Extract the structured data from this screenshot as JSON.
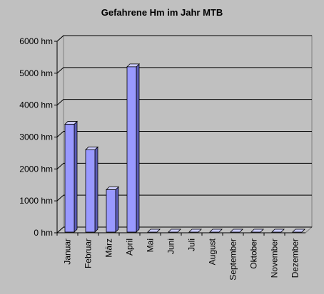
{
  "chart_data": {
    "type": "bar3d",
    "title": "Gefahrene Hm im Jahr MTB",
    "categories": [
      "Januar",
      "Februar",
      "März",
      "April",
      "Mai",
      "Juni",
      "Juli",
      "August",
      "September",
      "Oktober",
      "November",
      "Dezember"
    ],
    "values": [
      3400,
      2600,
      1350,
      5200,
      0,
      0,
      0,
      0,
      0,
      0,
      0,
      0
    ],
    "color": "#9999ff",
    "ylim": [
      0,
      6000
    ],
    "yticks": [
      {
        "value": 0,
        "label": "0 hm"
      },
      {
        "value": 1000,
        "label": "1000 hm"
      },
      {
        "value": 2000,
        "label": "2000 hm"
      },
      {
        "value": 3000,
        "label": "3000 hm"
      },
      {
        "value": 4000,
        "label": "4000 hm"
      },
      {
        "value": 5000,
        "label": "5000 hm"
      },
      {
        "value": 6000,
        "label": "6000 hm"
      }
    ],
    "grid": true
  }
}
